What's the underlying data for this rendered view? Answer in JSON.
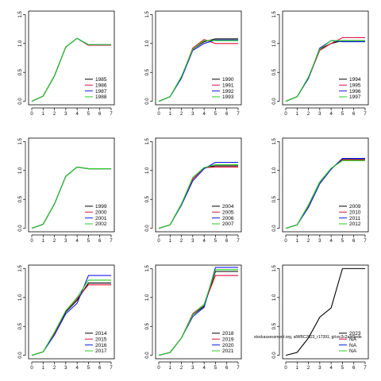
{
  "chart_data": [
    {
      "type": "line",
      "x": [
        0,
        1,
        2,
        3,
        4,
        5,
        6,
        7
      ],
      "xlim": [
        -0.28,
        7.28
      ],
      "xticks": [
        0,
        1,
        2,
        3,
        4,
        5,
        6,
        7
      ],
      "ylim": [
        -0.06,
        1.56
      ],
      "yticks": [
        {
          "value": 0,
          "label": "0.0"
        },
        {
          "value": 0.5,
          "label": "0.5"
        },
        {
          "value": 1,
          "label": "1.0"
        },
        {
          "value": 1.5,
          "label": "1.5"
        }
      ],
      "legend": "bottom-right",
      "series": [
        {
          "name": "1985",
          "color": "#000000",
          "values": [
            0,
            0.09,
            0.44,
            0.94,
            1.09,
            0.97,
            0.97,
            0.97
          ]
        },
        {
          "name": "1986",
          "color": "#E0103A",
          "values": [
            0,
            0.09,
            0.44,
            0.94,
            1.09,
            0.97,
            0.97,
            0.97
          ]
        },
        {
          "name": "1987",
          "color": "#1A1AE6",
          "values": [
            0,
            0.09,
            0.44,
            0.94,
            1.09,
            0.98,
            0.98,
            0.98
          ]
        },
        {
          "name": "1988",
          "color": "#22D022",
          "values": [
            0,
            0.09,
            0.44,
            0.94,
            1.09,
            0.98,
            0.98,
            0.98
          ]
        }
      ]
    },
    {
      "type": "line",
      "x": [
        0,
        1,
        2,
        3,
        4,
        5,
        6,
        7
      ],
      "xlim": [
        -0.28,
        7.28
      ],
      "xticks": [
        0,
        1,
        2,
        3,
        4,
        5,
        6,
        7
      ],
      "ylim": [
        -0.06,
        1.56
      ],
      "yticks": [
        {
          "value": 0,
          "label": "0.0"
        },
        {
          "value": 0.5,
          "label": "0.5"
        },
        {
          "value": 1,
          "label": "1.0"
        },
        {
          "value": 1.5,
          "label": "1.5"
        }
      ],
      "legend": "bottom-right",
      "series": [
        {
          "name": "1990",
          "color": "#000000",
          "values": [
            0,
            0.08,
            0.42,
            0.9,
            1.03,
            1.08,
            1.08,
            1.08
          ]
        },
        {
          "name": "1991",
          "color": "#E0103A",
          "values": [
            0,
            0.08,
            0.42,
            0.92,
            1.07,
            1.0,
            1.0,
            1.0
          ]
        },
        {
          "name": "1992",
          "color": "#1A1AE6",
          "values": [
            0,
            0.08,
            0.4,
            0.88,
            1.0,
            1.06,
            1.06,
            1.06
          ]
        },
        {
          "name": "1993",
          "color": "#22D022",
          "values": [
            0,
            0.08,
            0.43,
            0.9,
            1.05,
            1.05,
            1.05,
            1.05
          ]
        }
      ]
    },
    {
      "type": "line",
      "x": [
        0,
        1,
        2,
        3,
        4,
        5,
        6,
        7
      ],
      "xlim": [
        -0.28,
        7.28
      ],
      "xticks": [
        0,
        1,
        2,
        3,
        4,
        5,
        6,
        7
      ],
      "ylim": [
        -0.06,
        1.56
      ],
      "yticks": [
        {
          "value": 0,
          "label": "0.0"
        },
        {
          "value": 0.5,
          "label": "0.5"
        },
        {
          "value": 1,
          "label": "1.0"
        },
        {
          "value": 1.5,
          "label": "1.5"
        }
      ],
      "legend": "bottom-right",
      "series": [
        {
          "name": "1994",
          "color": "#000000",
          "values": [
            0,
            0.08,
            0.4,
            0.9,
            1.0,
            1.05,
            1.05,
            1.05
          ]
        },
        {
          "name": "1995",
          "color": "#E0103A",
          "values": [
            0,
            0.08,
            0.4,
            0.88,
            1.0,
            1.1,
            1.1,
            1.1
          ]
        },
        {
          "name": "1996",
          "color": "#1A1AE6",
          "values": [
            0,
            0.08,
            0.4,
            0.92,
            1.05,
            1.03,
            1.03,
            1.03
          ]
        },
        {
          "name": "1997",
          "color": "#22D022",
          "values": [
            0,
            0.08,
            0.42,
            0.9,
            1.05,
            1.05,
            1.05,
            1.05
          ]
        }
      ]
    },
    {
      "type": "line",
      "x": [
        0,
        1,
        2,
        3,
        4,
        5,
        6,
        7
      ],
      "xlim": [
        -0.28,
        7.28
      ],
      "xticks": [
        0,
        1,
        2,
        3,
        4,
        5,
        6,
        7
      ],
      "ylim": [
        -0.06,
        1.56
      ],
      "yticks": [
        {
          "value": 0,
          "label": "0.0"
        },
        {
          "value": 0.5,
          "label": "0.5"
        },
        {
          "value": 1,
          "label": "1.0"
        },
        {
          "value": 1.5,
          "label": "1.5"
        }
      ],
      "legend": "bottom-right",
      "series": [
        {
          "name": "1999",
          "color": "#000000",
          "values": [
            0,
            0.07,
            0.42,
            0.9,
            1.06,
            1.03,
            1.03,
            1.03
          ]
        },
        {
          "name": "2000",
          "color": "#E0103A",
          "values": [
            0,
            0.07,
            0.42,
            0.9,
            1.06,
            1.03,
            1.03,
            1.03
          ]
        },
        {
          "name": "2001",
          "color": "#1A1AE6",
          "values": [
            0,
            0.07,
            0.42,
            0.9,
            1.06,
            1.03,
            1.03,
            1.03
          ]
        },
        {
          "name": "2002",
          "color": "#22D022",
          "values": [
            0,
            0.07,
            0.42,
            0.9,
            1.06,
            1.03,
            1.03,
            1.03
          ]
        }
      ]
    },
    {
      "type": "line",
      "x": [
        0,
        1,
        2,
        3,
        4,
        5,
        6,
        7
      ],
      "xlim": [
        -0.28,
        7.28
      ],
      "xticks": [
        0,
        1,
        2,
        3,
        4,
        5,
        6,
        7
      ],
      "ylim": [
        -0.06,
        1.56
      ],
      "yticks": [
        {
          "value": 0,
          "label": "0.0"
        },
        {
          "value": 0.5,
          "label": "0.5"
        },
        {
          "value": 1,
          "label": "1.0"
        },
        {
          "value": 1.5,
          "label": "1.5"
        }
      ],
      "legend": "bottom-right",
      "series": [
        {
          "name": "2004",
          "color": "#000000",
          "values": [
            0,
            0.06,
            0.42,
            0.85,
            1.05,
            1.08,
            1.08,
            1.08
          ]
        },
        {
          "name": "2005",
          "color": "#E0103A",
          "values": [
            0,
            0.06,
            0.42,
            0.85,
            1.05,
            1.06,
            1.06,
            1.06
          ]
        },
        {
          "name": "2006",
          "color": "#1A1AE6",
          "values": [
            0,
            0.06,
            0.4,
            0.82,
            1.03,
            1.14,
            1.14,
            1.14
          ]
        },
        {
          "name": "2007",
          "color": "#22D022",
          "values": [
            0,
            0.06,
            0.42,
            0.88,
            1.05,
            1.1,
            1.1,
            1.1
          ]
        }
      ]
    },
    {
      "type": "line",
      "x": [
        0,
        1,
        2,
        3,
        4,
        5,
        6,
        7
      ],
      "xlim": [
        -0.28,
        7.28
      ],
      "xticks": [
        0,
        1,
        2,
        3,
        4,
        5,
        6,
        7
      ],
      "ylim": [
        -0.06,
        1.56
      ],
      "yticks": [
        {
          "value": 0,
          "label": "0.0"
        },
        {
          "value": 0.5,
          "label": "0.5"
        },
        {
          "value": 1,
          "label": "1.0"
        },
        {
          "value": 1.5,
          "label": "1.5"
        }
      ],
      "legend": "bottom-right",
      "series": [
        {
          "name": "2009",
          "color": "#000000",
          "values": [
            0,
            0.06,
            0.4,
            0.8,
            1.03,
            1.2,
            1.2,
            1.2
          ]
        },
        {
          "name": "2010",
          "color": "#E0103A",
          "values": [
            0,
            0.06,
            0.38,
            0.78,
            1.03,
            1.18,
            1.18,
            1.18
          ]
        },
        {
          "name": "2011",
          "color": "#1A1AE6",
          "values": [
            0,
            0.06,
            0.36,
            0.77,
            1.02,
            1.21,
            1.21,
            1.21
          ]
        },
        {
          "name": "2012",
          "color": "#22D022",
          "values": [
            0,
            0.06,
            0.4,
            0.8,
            1.04,
            1.17,
            1.17,
            1.17
          ]
        }
      ]
    },
    {
      "type": "line",
      "x": [
        0,
        1,
        2,
        3,
        4,
        5,
        6,
        7
      ],
      "xlim": [
        -0.28,
        7.28
      ],
      "xticks": [
        0,
        1,
        2,
        3,
        4,
        5,
        6,
        7
      ],
      "ylim": [
        -0.06,
        1.56
      ],
      "yticks": [
        {
          "value": 0,
          "label": "0.0"
        },
        {
          "value": 0.5,
          "label": "0.5"
        },
        {
          "value": 1,
          "label": "1.0"
        },
        {
          "value": 1.5,
          "label": "1.5"
        }
      ],
      "legend": "bottom-right",
      "series": [
        {
          "name": "2014",
          "color": "#000000",
          "values": [
            0,
            0.06,
            0.38,
            0.75,
            0.95,
            1.25,
            1.25,
            1.25
          ]
        },
        {
          "name": "2015",
          "color": "#E0103A",
          "values": [
            0,
            0.06,
            0.38,
            0.77,
            0.98,
            1.22,
            1.22,
            1.22
          ]
        },
        {
          "name": "2016",
          "color": "#1A1AE6",
          "values": [
            0,
            0.06,
            0.35,
            0.72,
            0.9,
            1.38,
            1.38,
            1.38
          ]
        },
        {
          "name": "2017",
          "color": "#22D022",
          "values": [
            0,
            0.06,
            0.4,
            0.77,
            1.0,
            1.3,
            1.3,
            1.3
          ]
        }
      ]
    },
    {
      "type": "line",
      "x": [
        0,
        1,
        2,
        3,
        4,
        5,
        6,
        7
      ],
      "xlim": [
        -0.28,
        7.28
      ],
      "xticks": [
        0,
        1,
        2,
        3,
        4,
        5,
        6,
        7
      ],
      "ylim": [
        -0.06,
        1.56
      ],
      "yticks": [
        {
          "value": 0,
          "label": "0.0"
        },
        {
          "value": 0.5,
          "label": "0.5"
        },
        {
          "value": 1,
          "label": "1.0"
        },
        {
          "value": 1.5,
          "label": "1.5"
        }
      ],
      "legend": "bottom-right",
      "series": [
        {
          "name": "2018",
          "color": "#000000",
          "values": [
            0,
            0.05,
            0.3,
            0.7,
            0.85,
            1.45,
            1.45,
            1.45
          ]
        },
        {
          "name": "2019",
          "color": "#E0103A",
          "values": [
            0,
            0.05,
            0.3,
            0.72,
            0.88,
            1.38,
            1.38,
            1.38
          ]
        },
        {
          "name": "2020",
          "color": "#1A1AE6",
          "values": [
            0,
            0.05,
            0.3,
            0.67,
            0.83,
            1.52,
            1.52,
            1.52
          ]
        },
        {
          "name": "2021",
          "color": "#22D022",
          "values": [
            0,
            0.05,
            0.3,
            0.7,
            0.88,
            1.48,
            1.48,
            1.48
          ]
        }
      ]
    },
    {
      "type": "line",
      "x": [
        0,
        1,
        2,
        3,
        4,
        5,
        6,
        7
      ],
      "xlim": [
        -0.28,
        7.28
      ],
      "xticks": [
        0,
        1,
        2,
        3,
        4,
        5,
        6,
        7
      ],
      "ylim": [
        -0.06,
        1.56
      ],
      "yticks": [
        {
          "value": 0,
          "label": "0.0"
        },
        {
          "value": 0.5,
          "label": "0.5"
        },
        {
          "value": 1,
          "label": "1.0"
        },
        {
          "value": 1.5,
          "label": "1.5"
        }
      ],
      "legend": "bottom-right",
      "annotation": "stockassessment.org, alWBC2023_r17391, git:ec2c2afd9ede",
      "series": [
        {
          "name": "2023",
          "color": "#000000",
          "values": [
            0,
            0.05,
            0.3,
            0.66,
            0.82,
            1.5,
            1.5,
            1.5
          ]
        },
        {
          "name": "NA",
          "color": "#E0103A",
          "values": [
            null,
            null,
            null,
            null,
            null,
            null,
            null,
            null
          ]
        },
        {
          "name": "NA",
          "color": "#1A1AE6",
          "values": [
            null,
            null,
            null,
            null,
            null,
            null,
            null,
            null
          ]
        },
        {
          "name": "NA",
          "color": "#22D022",
          "values": [
            null,
            null,
            null,
            null,
            null,
            null,
            null,
            null
          ]
        }
      ]
    }
  ]
}
